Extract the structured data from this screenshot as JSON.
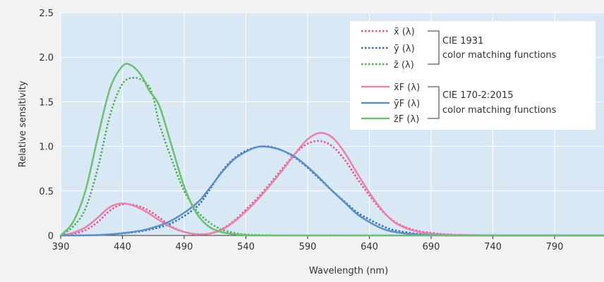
{
  "chart_data": {
    "type": "line",
    "xlabel": "Wavelength (nm)",
    "ylabel": "Relative sensitivity",
    "xlim": [
      390,
      830
    ],
    "ylim": [
      0,
      2.5
    ],
    "x_ticks": [
      390,
      440,
      490,
      540,
      590,
      640,
      690,
      740,
      790
    ],
    "y_ticks": [
      0,
      0.5,
      1.0,
      1.5,
      2.0,
      2.5
    ],
    "y_tick_labels": [
      "0",
      "0.5",
      "1.0",
      "1.5",
      "2.0",
      "2.5"
    ],
    "grid": true,
    "legend_placement": "top-right",
    "colors": {
      "plot_bg": "#d9e8f5",
      "page_bg": "#f2f2f2",
      "grid": "#ffffff",
      "x": "#e8518a",
      "y": "#2e6fb8",
      "z": "#4cae55",
      "xF": "#ef7fa8",
      "yF": "#5b8fcc",
      "zF": "#6cbf72"
    },
    "legend_groups": [
      {
        "group_label_lines": [
          "CIE 1931",
          "color matching functions"
        ],
        "entries": [
          "x̄ (λ)",
          "ȳ (λ)",
          "z̄ (λ)"
        ]
      },
      {
        "group_label_lines": [
          "CIE 170-2:2015",
          "color matching functions"
        ],
        "entries": [
          "x̄F (λ)",
          "ȳF (λ)",
          "z̄F (λ)"
        ]
      }
    ],
    "series": [
      {
        "name": "x̄ (λ)",
        "style": "dotted",
        "color": "#e8518a",
        "points": [
          [
            390,
            0.0
          ],
          [
            400,
            0.02
          ],
          [
            410,
            0.06
          ],
          [
            420,
            0.15
          ],
          [
            430,
            0.28
          ],
          [
            440,
            0.35
          ],
          [
            450,
            0.34
          ],
          [
            460,
            0.29
          ],
          [
            470,
            0.2
          ],
          [
            480,
            0.1
          ],
          [
            490,
            0.04
          ],
          [
            500,
            0.01
          ],
          [
            510,
            0.02
          ],
          [
            520,
            0.07
          ],
          [
            530,
            0.16
          ],
          [
            540,
            0.29
          ],
          [
            550,
            0.43
          ],
          [
            560,
            0.59
          ],
          [
            570,
            0.76
          ],
          [
            580,
            0.92
          ],
          [
            590,
            1.03
          ],
          [
            600,
            1.06
          ],
          [
            610,
            1.0
          ],
          [
            620,
            0.85
          ],
          [
            630,
            0.64
          ],
          [
            640,
            0.45
          ],
          [
            650,
            0.28
          ],
          [
            660,
            0.16
          ],
          [
            670,
            0.09
          ],
          [
            680,
            0.05
          ],
          [
            690,
            0.03
          ],
          [
            700,
            0.015
          ],
          [
            720,
            0.005
          ],
          [
            760,
            0.0
          ],
          [
            830,
            0.0
          ]
        ]
      },
      {
        "name": "ȳ (λ)",
        "style": "dotted",
        "color": "#2e6fb8",
        "points": [
          [
            390,
            0.0
          ],
          [
            420,
            0.004
          ],
          [
            440,
            0.023
          ],
          [
            460,
            0.06
          ],
          [
            480,
            0.14
          ],
          [
            500,
            0.32
          ],
          [
            510,
            0.5
          ],
          [
            520,
            0.71
          ],
          [
            530,
            0.86
          ],
          [
            540,
            0.95
          ],
          [
            550,
            0.995
          ],
          [
            560,
            0.995
          ],
          [
            570,
            0.95
          ],
          [
            580,
            0.87
          ],
          [
            590,
            0.76
          ],
          [
            600,
            0.63
          ],
          [
            610,
            0.5
          ],
          [
            620,
            0.38
          ],
          [
            630,
            0.26
          ],
          [
            640,
            0.18
          ],
          [
            650,
            0.11
          ],
          [
            660,
            0.06
          ],
          [
            680,
            0.017
          ],
          [
            700,
            0.004
          ],
          [
            720,
            0.0
          ],
          [
            830,
            0.0
          ]
        ]
      },
      {
        "name": "z̄ (λ)",
        "style": "dotted",
        "color": "#4cae55",
        "points": [
          [
            390,
            0.0
          ],
          [
            400,
            0.1
          ],
          [
            410,
            0.3
          ],
          [
            420,
            0.75
          ],
          [
            430,
            1.35
          ],
          [
            440,
            1.7
          ],
          [
            450,
            1.77
          ],
          [
            460,
            1.7
          ],
          [
            465,
            1.55
          ],
          [
            470,
            1.25
          ],
          [
            480,
            0.85
          ],
          [
            490,
            0.5
          ],
          [
            500,
            0.28
          ],
          [
            510,
            0.15
          ],
          [
            520,
            0.07
          ],
          [
            530,
            0.03
          ],
          [
            540,
            0.01
          ],
          [
            560,
            0.002
          ],
          [
            580,
            0.0
          ],
          [
            830,
            0.0
          ]
        ]
      },
      {
        "name": "x̄F (λ)",
        "style": "solid",
        "color": "#ef7fa8",
        "points": [
          [
            390,
            0.0
          ],
          [
            400,
            0.03
          ],
          [
            410,
            0.09
          ],
          [
            420,
            0.2
          ],
          [
            430,
            0.32
          ],
          [
            440,
            0.36
          ],
          [
            450,
            0.33
          ],
          [
            460,
            0.26
          ],
          [
            470,
            0.17
          ],
          [
            480,
            0.09
          ],
          [
            490,
            0.04
          ],
          [
            500,
            0.015
          ],
          [
            510,
            0.02
          ],
          [
            520,
            0.06
          ],
          [
            530,
            0.15
          ],
          [
            540,
            0.27
          ],
          [
            550,
            0.41
          ],
          [
            560,
            0.57
          ],
          [
            570,
            0.74
          ],
          [
            580,
            0.92
          ],
          [
            590,
            1.08
          ],
          [
            600,
            1.15
          ],
          [
            610,
            1.1
          ],
          [
            620,
            0.93
          ],
          [
            630,
            0.7
          ],
          [
            640,
            0.48
          ],
          [
            650,
            0.29
          ],
          [
            660,
            0.15
          ],
          [
            670,
            0.08
          ],
          [
            680,
            0.04
          ],
          [
            690,
            0.02
          ],
          [
            700,
            0.01
          ],
          [
            720,
            0.003
          ],
          [
            760,
            0.0
          ],
          [
            830,
            0.0
          ]
        ]
      },
      {
        "name": "ȳF (λ)",
        "style": "solid",
        "color": "#5b8fcc",
        "points": [
          [
            390,
            0.0
          ],
          [
            420,
            0.005
          ],
          [
            440,
            0.025
          ],
          [
            460,
            0.07
          ],
          [
            480,
            0.17
          ],
          [
            500,
            0.36
          ],
          [
            510,
            0.52
          ],
          [
            520,
            0.7
          ],
          [
            530,
            0.85
          ],
          [
            540,
            0.94
          ],
          [
            550,
            0.995
          ],
          [
            560,
            0.99
          ],
          [
            570,
            0.95
          ],
          [
            580,
            0.88
          ],
          [
            590,
            0.77
          ],
          [
            600,
            0.64
          ],
          [
            610,
            0.5
          ],
          [
            620,
            0.37
          ],
          [
            630,
            0.24
          ],
          [
            640,
            0.15
          ],
          [
            650,
            0.08
          ],
          [
            660,
            0.04
          ],
          [
            680,
            0.01
          ],
          [
            700,
            0.002
          ],
          [
            720,
            0.0
          ],
          [
            830,
            0.0
          ]
        ]
      },
      {
        "name": "z̄F (λ)",
        "style": "solid",
        "color": "#6cbf72",
        "points": [
          [
            390,
            0.0
          ],
          [
            400,
            0.15
          ],
          [
            410,
            0.5
          ],
          [
            420,
            1.1
          ],
          [
            430,
            1.65
          ],
          [
            440,
            1.9
          ],
          [
            447,
            1.91
          ],
          [
            455,
            1.8
          ],
          [
            462,
            1.62
          ],
          [
            470,
            1.45
          ],
          [
            480,
            1.0
          ],
          [
            490,
            0.55
          ],
          [
            500,
            0.25
          ],
          [
            510,
            0.1
          ],
          [
            520,
            0.04
          ],
          [
            530,
            0.015
          ],
          [
            540,
            0.005
          ],
          [
            560,
            0.0
          ],
          [
            830,
            0.0
          ]
        ]
      }
    ]
  }
}
